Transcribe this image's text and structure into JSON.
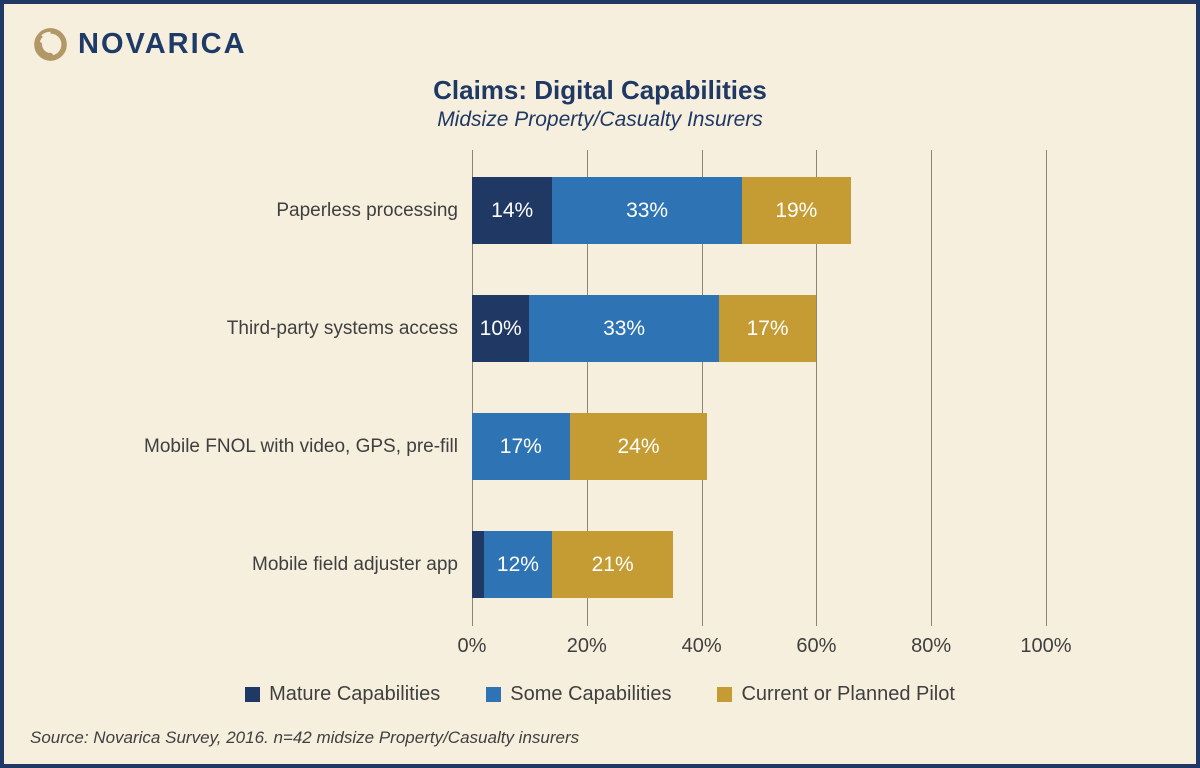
{
  "brand": {
    "name": "NOVARICA"
  },
  "chart_data": {
    "type": "bar",
    "orientation": "horizontal",
    "stacked": true,
    "title": "Claims: Digital Capabilities",
    "subtitle": "Midsize Property/Casualty Insurers",
    "categories": [
      "Paperless processing",
      "Third-party systems access",
      "Mobile FNOL with video, GPS, pre-fill",
      "Mobile field adjuster app"
    ],
    "series": [
      {
        "name": "Mature Capabilities",
        "color": "#1F3864",
        "values": [
          14,
          10,
          0,
          2
        ]
      },
      {
        "name": "Some Capabilities",
        "color": "#2E74B5",
        "values": [
          33,
          33,
          17,
          12
        ]
      },
      {
        "name": "Current or Planned Pilot",
        "color": "#C49C33",
        "values": [
          19,
          17,
          24,
          21
        ]
      }
    ],
    "x_ticks": [
      "0%",
      "20%",
      "40%",
      "60%",
      "80%",
      "100%"
    ],
    "xlim": [
      0,
      100
    ],
    "grid": true,
    "legend_position": "bottom",
    "data_label_suffix": "%",
    "data_label_min_value": 5
  },
  "footer": {
    "source": "Source: Novarica Survey, 2016. n=42 midsize Property/Casualty insurers"
  },
  "colors": {
    "background": "#F6EFDE",
    "border": "#1F3864",
    "gridline": "#8C8678",
    "text": "#3F3F3F",
    "title": "#1F3864",
    "logo": "#B29767",
    "bar_label": "#FFFFFF"
  }
}
